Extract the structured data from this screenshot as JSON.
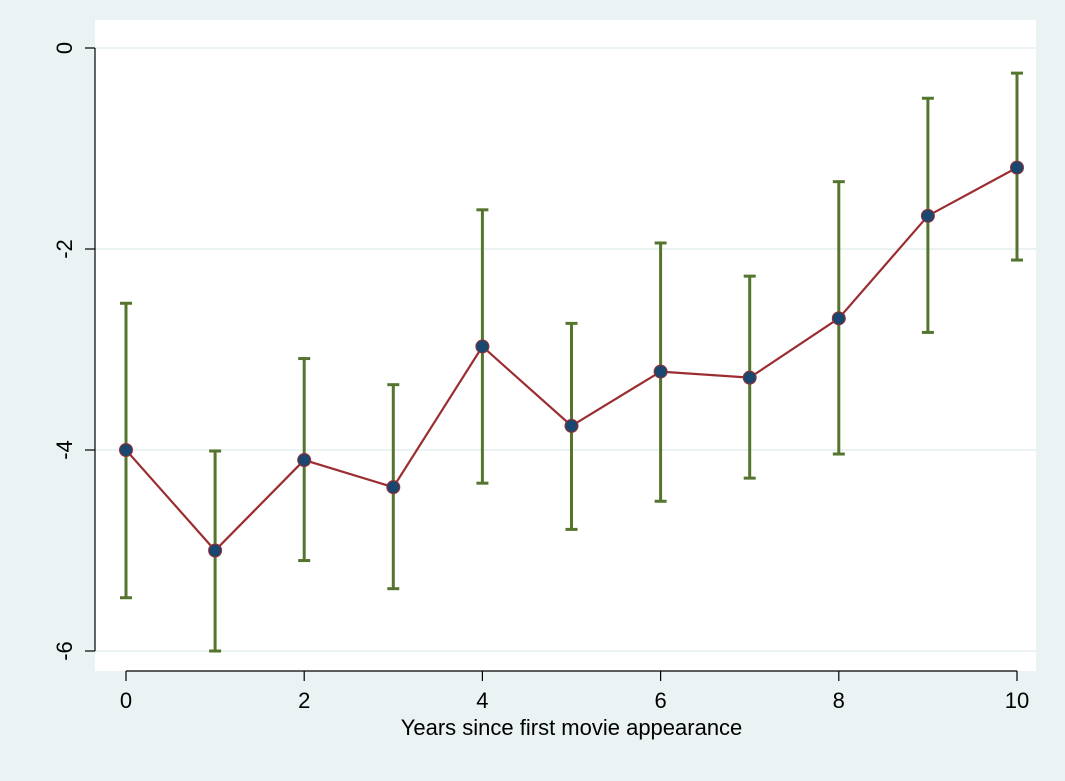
{
  "chart_data": {
    "type": "line",
    "title": "",
    "xlabel": "Years since first movie appearance",
    "ylabel": "",
    "xlim": [
      0,
      10
    ],
    "ylim": [
      -6,
      0
    ],
    "xticks": [
      0,
      2,
      4,
      6,
      8,
      10
    ],
    "yticks": [
      0,
      -2,
      -4,
      -6
    ],
    "grid": "horizontal",
    "legend": "none",
    "x": [
      0,
      1,
      2,
      3,
      4,
      5,
      6,
      7,
      8,
      9,
      10
    ],
    "series": [
      {
        "values": [
          -4.0,
          -5.0,
          -4.1,
          -4.37,
          -2.97,
          -3.76,
          -3.22,
          -3.28,
          -2.69,
          -1.67,
          -1.19
        ],
        "ci_low": [
          -5.47,
          -6.0,
          -5.1,
          -5.38,
          -4.33,
          -4.79,
          -4.51,
          -4.28,
          -4.04,
          -2.83,
          -2.11
        ],
        "ci_high": [
          -2.54,
          -4.01,
          -3.09,
          -3.35,
          -1.61,
          -2.74,
          -1.94,
          -2.27,
          -1.33,
          -0.5,
          -0.25
        ],
        "line_color": "#9b2d30",
        "marker_color": "#1a476f",
        "errorbar_color": "#55752f"
      }
    ],
    "colors": {
      "outer_background": "#eaf2f3",
      "plot_background": "#ffffff",
      "grid": "#eaf2f3",
      "axis": "#000000"
    }
  }
}
